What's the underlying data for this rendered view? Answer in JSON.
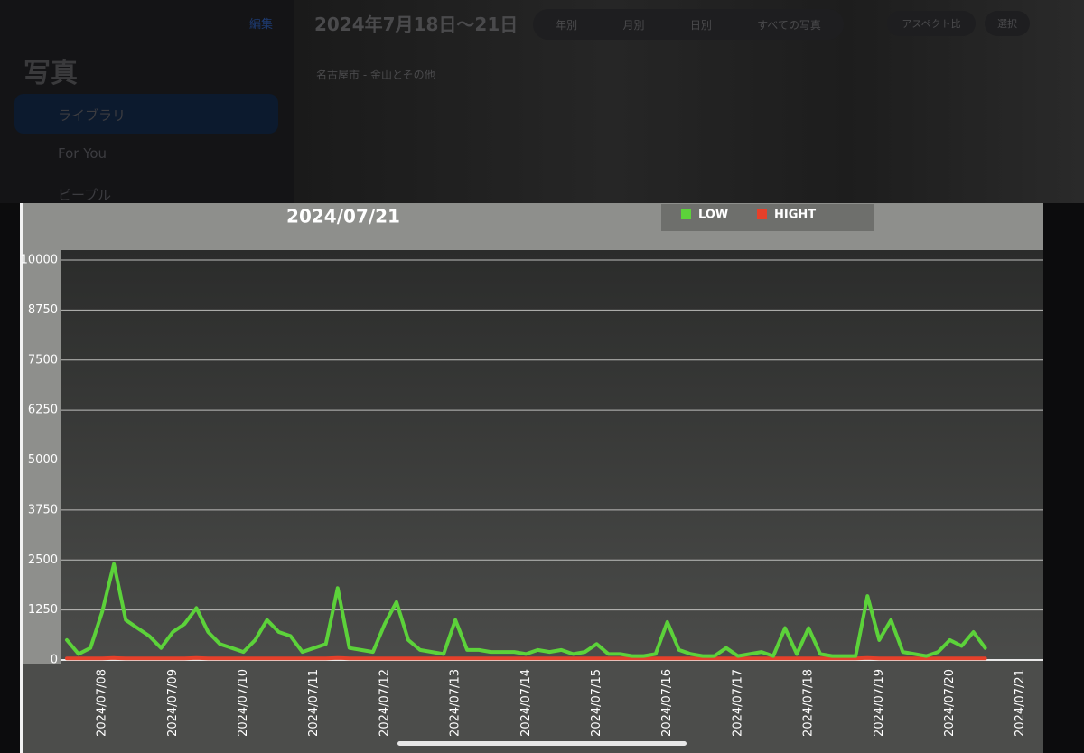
{
  "app": {
    "sidebar_title": "写真",
    "edit": "編集",
    "sidebar_items": [
      "ライブラリ",
      "For You",
      "ピープル"
    ],
    "album_title": "2024年7月18日～21日",
    "album_subtitle": "名古屋市 - 金山とその他",
    "tabs": [
      "年別",
      "月別",
      "日別",
      "すべての写真"
    ],
    "buttons": [
      "アスペクト比",
      "選択"
    ]
  },
  "chart_data": {
    "type": "line",
    "title": "2024/07/21",
    "categories": [
      null,
      null,
      null,
      "2024/07/08",
      null,
      null,
      null,
      null,
      null,
      "2024/07/09",
      null,
      null,
      null,
      null,
      null,
      "2024/07/10",
      null,
      null,
      null,
      null,
      null,
      "2024/07/11",
      null,
      null,
      null,
      null,
      null,
      "2024/07/12",
      null,
      null,
      null,
      null,
      null,
      "2024/07/13",
      null,
      null,
      null,
      null,
      null,
      "2024/07/14",
      null,
      null,
      null,
      null,
      null,
      "2024/07/15",
      null,
      null,
      null,
      null,
      null,
      "2024/07/16",
      null,
      null,
      null,
      null,
      null,
      "2024/07/17",
      null,
      null,
      null,
      null,
      null,
      "2024/07/18",
      null,
      null,
      null,
      null,
      null,
      "2024/07/19",
      null,
      null,
      null,
      null,
      null,
      "2024/07/20",
      null,
      null,
      null,
      null,
      null,
      "2024/07/21"
    ],
    "series": [
      {
        "name": "LOW",
        "color": "#5cd23a",
        "values": [
          500,
          150,
          300,
          1200,
          2400,
          1000,
          800,
          600,
          300,
          700,
          900,
          1300,
          700,
          400,
          300,
          200,
          500,
          1000,
          700,
          600,
          200,
          300,
          400,
          1800,
          300,
          250,
          200,
          900,
          1450,
          500,
          250,
          200,
          150,
          1000,
          250,
          250,
          200,
          200,
          200,
          150,
          250,
          200,
          250,
          150,
          200,
          400,
          150,
          150,
          100,
          100,
          150,
          950,
          250,
          150,
          100,
          100,
          300,
          100,
          150,
          200,
          100,
          800,
          150,
          800,
          150,
          100,
          100,
          100,
          1600,
          500,
          1000,
          200,
          150,
          100,
          200,
          500,
          350,
          700,
          300,
          null,
          null,
          null
        ]
      },
      {
        "name": "HIGHT",
        "color": "#e5402a",
        "values": [
          40,
          40,
          40,
          40,
          50,
          40,
          40,
          40,
          40,
          40,
          40,
          50,
          40,
          40,
          40,
          40,
          40,
          40,
          40,
          40,
          40,
          40,
          40,
          50,
          40,
          40,
          40,
          40,
          40,
          40,
          40,
          40,
          40,
          40,
          40,
          40,
          40,
          40,
          40,
          40,
          40,
          40,
          40,
          40,
          40,
          40,
          40,
          40,
          40,
          40,
          40,
          40,
          40,
          40,
          40,
          40,
          40,
          40,
          40,
          40,
          40,
          40,
          40,
          40,
          40,
          40,
          40,
          40,
          50,
          40,
          40,
          40,
          40,
          40,
          40,
          40,
          40,
          40,
          40,
          null,
          null,
          null
        ]
      }
    ],
    "ylim": [
      0,
      10000
    ],
    "yticks": [
      0,
      1250,
      2500,
      3750,
      5000,
      6250,
      7500,
      8750,
      10000
    ],
    "grid": true,
    "legend": "top"
  }
}
